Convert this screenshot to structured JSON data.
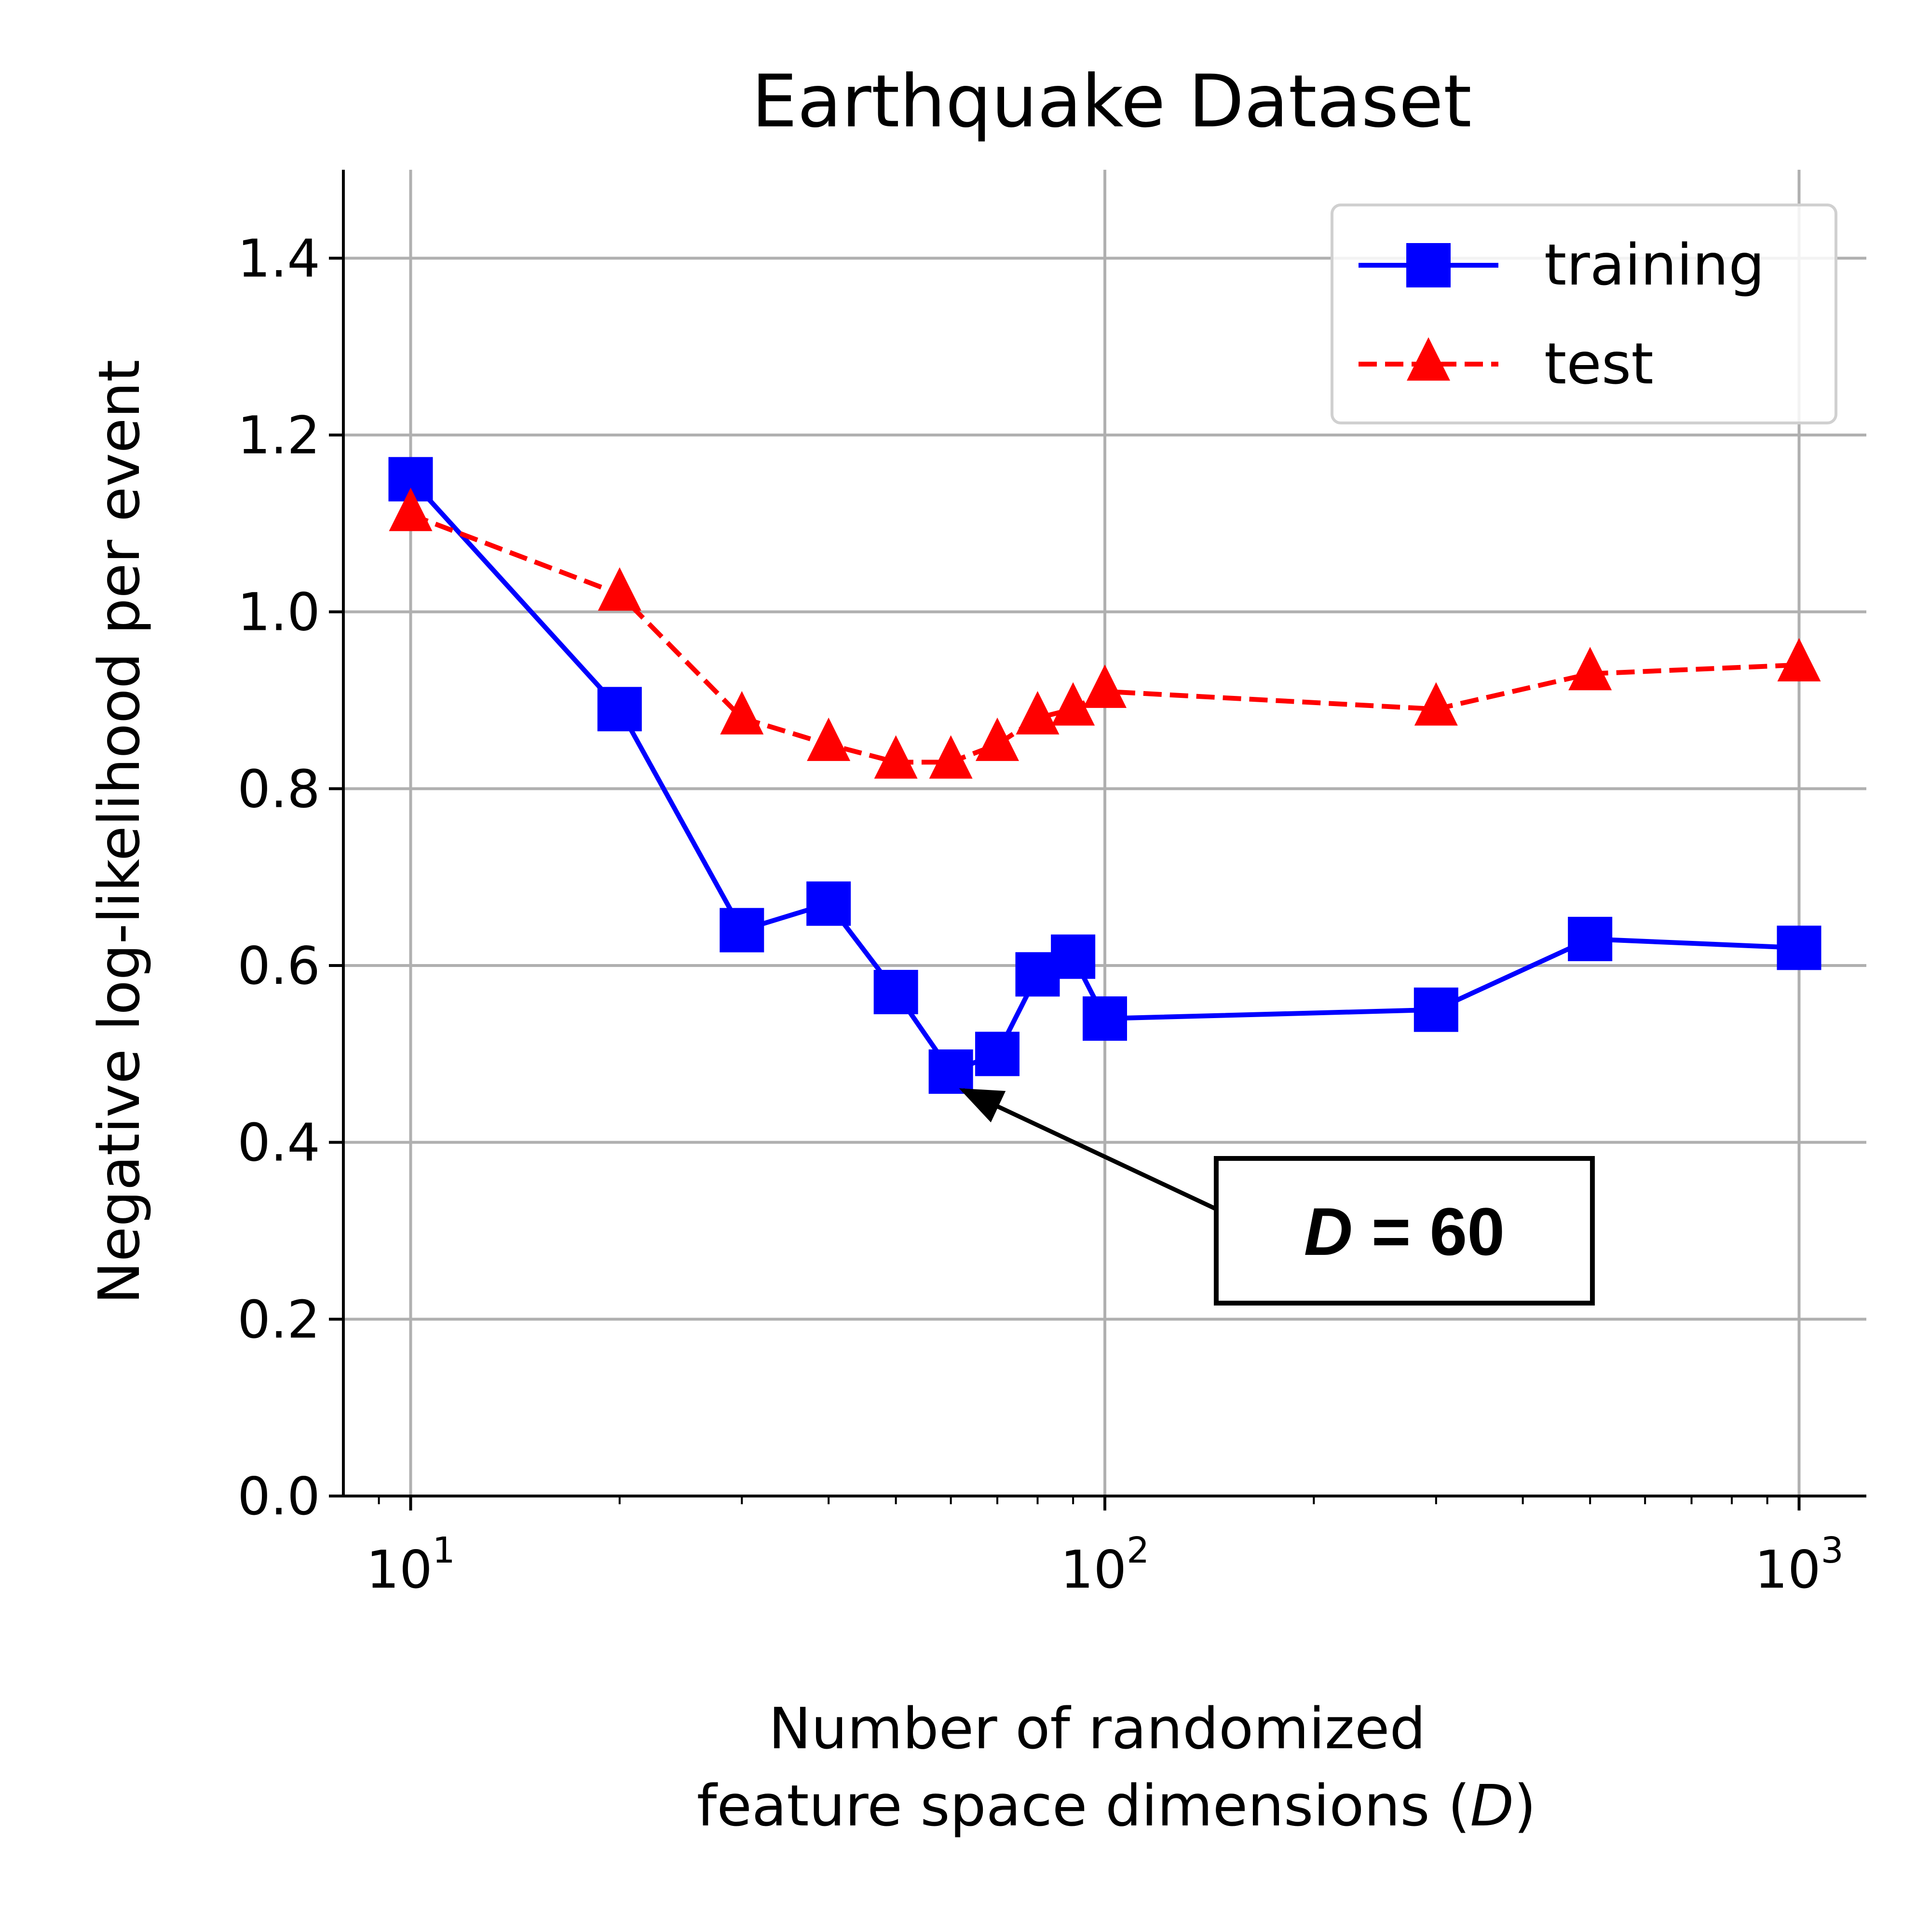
{
  "chart_data": {
    "type": "line",
    "title": "Earthquake Dataset",
    "xlabel_line1": "Number of randomized",
    "xlabel_line2_prefix": "feature space dimensions (",
    "xlabel_line2_var": "D",
    "xlabel_line2_suffix": ")",
    "ylabel": "Negative log-likelihood per event",
    "xscale": "log",
    "xlim": [
      8,
      1250
    ],
    "ylim": [
      0,
      1.5
    ],
    "grid": true,
    "legend_position": "top-right",
    "x_ticks": [
      {
        "value": 10,
        "base": "10",
        "exp": "1"
      },
      {
        "value": 100,
        "base": "10",
        "exp": "2"
      },
      {
        "value": 1000,
        "base": "10",
        "exp": "3"
      }
    ],
    "y_ticks": [
      {
        "value": 0.0,
        "label": "0.0"
      },
      {
        "value": 0.2,
        "label": "0.2"
      },
      {
        "value": 0.4,
        "label": "0.4"
      },
      {
        "value": 0.6,
        "label": "0.6"
      },
      {
        "value": 0.8,
        "label": "0.8"
      },
      {
        "value": 1.0,
        "label": "1.0"
      },
      {
        "value": 1.2,
        "label": "1.2"
      },
      {
        "value": 1.4,
        "label": "1.4"
      }
    ],
    "series": [
      {
        "name": "training",
        "color": "#0000ff",
        "marker": "square",
        "linestyle": "solid",
        "x": [
          10,
          20,
          30,
          40,
          50,
          60,
          70,
          80,
          90,
          100,
          300,
          500,
          1000
        ],
        "values": [
          1.15,
          0.89,
          0.64,
          0.67,
          0.57,
          0.48,
          0.5,
          0.59,
          0.61,
          0.54,
          0.55,
          0.63,
          0.62
        ]
      },
      {
        "name": "test",
        "color": "#ff0000",
        "marker": "triangle",
        "linestyle": "dashed",
        "x": [
          10,
          20,
          30,
          40,
          50,
          60,
          70,
          80,
          90,
          100,
          300,
          500,
          1000
        ],
        "values": [
          1.11,
          1.02,
          0.88,
          0.85,
          0.83,
          0.83,
          0.85,
          0.88,
          0.89,
          0.91,
          0.89,
          0.93,
          0.94
        ]
      }
    ],
    "annotation": {
      "var": "D",
      "rest": " = 60",
      "target_x": 60,
      "target_y": 0.47,
      "box_center_x": 270,
      "box_center_y": 0.3
    }
  }
}
